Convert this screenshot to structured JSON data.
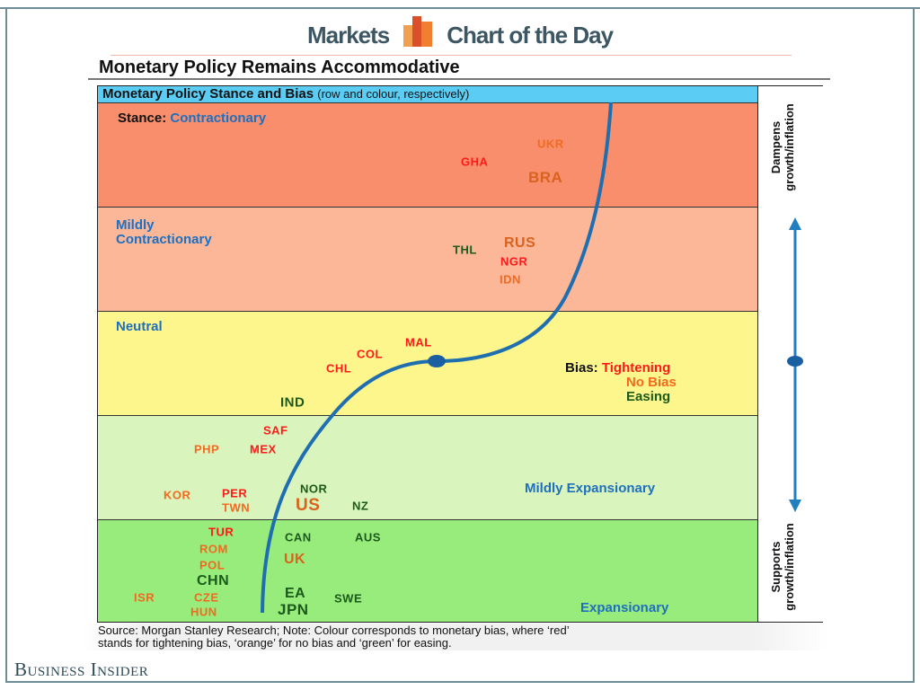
{
  "header": {
    "left": "Markets",
    "right": "Chart of the Day",
    "logo_colors": [
      "#f0a050",
      "#d9502a",
      "#f08030"
    ]
  },
  "title": "Monetary Policy Remains Accommodative",
  "chart_data": {
    "type": "scatter",
    "title": "Monetary Policy Stance and Bias",
    "subtitle": "(row and colour, respectively)",
    "rows": [
      {
        "prefix": "Stance:",
        "label": "Contractionary",
        "color": "#f98e6c"
      },
      {
        "label": "Mildly Contractionary",
        "line1": "Mildly",
        "line2": "Contractionary",
        "color": "#fcb799"
      },
      {
        "label": "Neutral",
        "color": "#fdf68c"
      },
      {
        "label": "Mildly Expansionary",
        "color": "#d9f5bd"
      },
      {
        "label": "Expansionary",
        "color": "#98ec7c"
      }
    ],
    "bias_legend": {
      "prefix": "Bias:",
      "items": [
        {
          "label": "Tightening",
          "color": "#ff1a1a"
        },
        {
          "label": "No Bias",
          "color": "#f26a1f"
        },
        {
          "label": "Easing",
          "color": "#1b5a1b"
        }
      ]
    },
    "side_axis": {
      "top": [
        "Dampens",
        "growth/inflation"
      ],
      "bottom": [
        "Supports",
        "growth/inflation"
      ],
      "color": "#1f7fc0"
    },
    "countries": [
      {
        "code": "UKR",
        "stance": "Contractionary",
        "bias": "No Bias"
      },
      {
        "code": "GHA",
        "stance": "Contractionary",
        "bias": "Tightening"
      },
      {
        "code": "BRA",
        "stance": "Contractionary",
        "bias": "No Bias"
      },
      {
        "code": "THL",
        "stance": "Mildly Contractionary",
        "bias": "Easing"
      },
      {
        "code": "RUS",
        "stance": "Mildly Contractionary",
        "bias": "No Bias"
      },
      {
        "code": "NGR",
        "stance": "Mildly Contractionary",
        "bias": "Tightening"
      },
      {
        "code": "IDN",
        "stance": "Mildly Contractionary",
        "bias": "No Bias"
      },
      {
        "code": "MAL",
        "stance": "Neutral",
        "bias": "Tightening"
      },
      {
        "code": "COL",
        "stance": "Neutral",
        "bias": "Tightening"
      },
      {
        "code": "CHL",
        "stance": "Neutral",
        "bias": "Tightening"
      },
      {
        "code": "IND",
        "stance": "Neutral",
        "bias": "Easing"
      },
      {
        "code": "SAF",
        "stance": "Mildly Expansionary",
        "bias": "Tightening"
      },
      {
        "code": "PHP",
        "stance": "Mildly Expansionary",
        "bias": "No Bias"
      },
      {
        "code": "MEX",
        "stance": "Mildly Expansionary",
        "bias": "Tightening"
      },
      {
        "code": "KOR",
        "stance": "Mildly Expansionary",
        "bias": "No Bias"
      },
      {
        "code": "PER",
        "stance": "Mildly Expansionary",
        "bias": "Tightening"
      },
      {
        "code": "TWN",
        "stance": "Mildly Expansionary",
        "bias": "No Bias"
      },
      {
        "code": "NOR",
        "stance": "Mildly Expansionary",
        "bias": "Easing"
      },
      {
        "code": "US",
        "stance": "Mildly Expansionary",
        "bias": "No Bias"
      },
      {
        "code": "NZ",
        "stance": "Mildly Expansionary",
        "bias": "Easing"
      },
      {
        "code": "TUR",
        "stance": "Expansionary",
        "bias": "Tightening"
      },
      {
        "code": "CAN",
        "stance": "Expansionary",
        "bias": "Easing"
      },
      {
        "code": "AUS",
        "stance": "Expansionary",
        "bias": "Easing"
      },
      {
        "code": "ROM",
        "stance": "Expansionary",
        "bias": "No Bias"
      },
      {
        "code": "UK",
        "stance": "Expansionary",
        "bias": "No Bias"
      },
      {
        "code": "POL",
        "stance": "Expansionary",
        "bias": "No Bias"
      },
      {
        "code": "CHN",
        "stance": "Expansionary",
        "bias": "Easing"
      },
      {
        "code": "ISR",
        "stance": "Expansionary",
        "bias": "No Bias"
      },
      {
        "code": "CZE",
        "stance": "Expansionary",
        "bias": "No Bias"
      },
      {
        "code": "EA",
        "stance": "Expansionary",
        "bias": "Easing"
      },
      {
        "code": "SWE",
        "stance": "Expansionary",
        "bias": "Easing"
      },
      {
        "code": "HUN",
        "stance": "Expansionary",
        "bias": "No Bias"
      },
      {
        "code": "JPN",
        "stance": "Expansionary",
        "bias": "Easing"
      }
    ]
  },
  "source": {
    "line1": "Source: Morgan Stanley Research; Note: Colour corresponds to monetary bias, where ‘red’",
    "line2": "stands for tightening bias, ‘orange’ for no bias and ‘green’ for easing."
  },
  "footer": {
    "brand": "Business Insider"
  }
}
